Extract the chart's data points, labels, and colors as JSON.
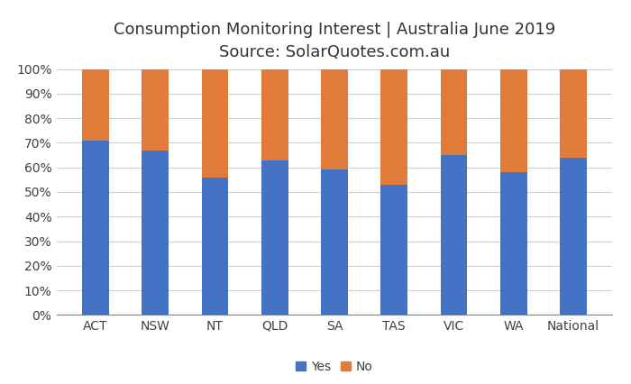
{
  "categories": [
    "ACT",
    "NSW",
    "NT",
    "QLD",
    "SA",
    "TAS",
    "VIC",
    "WA",
    "National"
  ],
  "yes_values": [
    71,
    67,
    56,
    63,
    59,
    53,
    65,
    58,
    64
  ],
  "no_values": [
    29,
    33,
    44,
    37,
    41,
    47,
    35,
    42,
    36
  ],
  "yes_color": "#4472C4",
  "no_color": "#E07B39",
  "title_line1": "Consumption Monitoring Interest | Australia June 2019",
  "title_line2": "Source: SolarQuotes.com.au",
  "ylabel_ticks": [
    "0%",
    "10%",
    "20%",
    "30%",
    "40%",
    "50%",
    "60%",
    "70%",
    "80%",
    "90%",
    "100%"
  ],
  "ytick_values": [
    0,
    10,
    20,
    30,
    40,
    50,
    60,
    70,
    80,
    90,
    100
  ],
  "legend_yes": "Yes",
  "legend_no": "No",
  "background_color": "#FFFFFF",
  "title_fontsize": 13,
  "subtitle_fontsize": 13,
  "tick_fontsize": 10,
  "legend_fontsize": 10,
  "bar_width": 0.45,
  "ylim": [
    0,
    100
  ]
}
